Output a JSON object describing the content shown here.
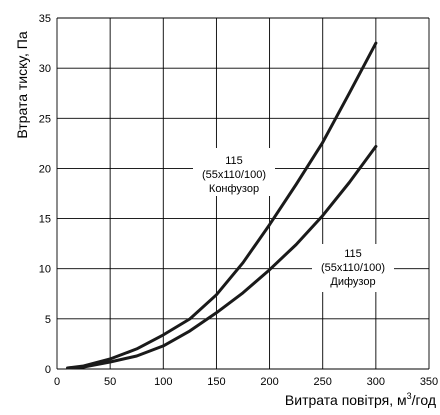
{
  "chart_data": {
    "type": "line",
    "xlabel_text": "Витрата повітря, м",
    "xlabel_sup": "3",
    "xlabel_unit": "/год",
    "ylabel": "Втрата тиску, Па",
    "xlim": [
      0,
      350
    ],
    "ylim": [
      0,
      35
    ],
    "xticks": [
      "0",
      "50",
      "100",
      "150",
      "200",
      "250",
      "300",
      "350"
    ],
    "yticks": [
      "0",
      "5",
      "10",
      "15",
      "20",
      "25",
      "30",
      "35"
    ],
    "grid": true,
    "series": [
      {
        "name": "Конфузор",
        "x": [
          10,
          25,
          50,
          75,
          100,
          125,
          150,
          175,
          200,
          225,
          250,
          275,
          300
        ],
        "y": [
          0.1,
          0.3,
          1.0,
          2.0,
          3.4,
          5.0,
          7.4,
          10.6,
          14.4,
          18.4,
          22.6,
          27.5,
          32.5
        ]
      },
      {
        "name": "Дифузор",
        "x": [
          10,
          25,
          50,
          75,
          100,
          125,
          150,
          175,
          200,
          225,
          250,
          275,
          300
        ],
        "y": [
          0.1,
          0.2,
          0.7,
          1.3,
          2.3,
          3.8,
          5.6,
          7.6,
          9.9,
          12.4,
          15.3,
          18.6,
          22.2
        ]
      }
    ],
    "annotations": [
      {
        "series": "Конфузор",
        "lines": [
          "115",
          "(55x110/100)",
          "Конфузор"
        ]
      },
      {
        "series": "Дифузор",
        "lines": [
          "115",
          "(55x110/100)",
          "Дифузор"
        ]
      }
    ]
  }
}
